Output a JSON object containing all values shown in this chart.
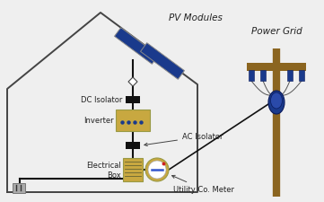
{
  "bg_color": "#efefef",
  "house_color": "#444444",
  "solar_color": "#1a3a8c",
  "solar_frame": "#888888",
  "gold_color": "#c8a840",
  "gold_edge": "#999944",
  "black_color": "#111111",
  "white_color": "#ffffff",
  "blue_dot_color": "#1a3a8c",
  "meter_blue": "#3355cc",
  "pole_color": "#8B6520",
  "insulator_color": "#1a3a8c",
  "wire_gray": "#555555",
  "text_color": "#222222",
  "arrow_color": "#444444",
  "red_dot": "#cc2222",
  "socket_color": "#aaaaaa",
  "title_pv": "PV Modules",
  "title_grid": "Power Grid",
  "label_dc": "DC Isolator",
  "label_inv": "Inverter",
  "label_ac": "AC Isolator",
  "label_elec": "Electrical\nBox",
  "label_meter": "Utility Co. Meter",
  "figsize": [
    3.61,
    2.26
  ],
  "dpi": 100
}
